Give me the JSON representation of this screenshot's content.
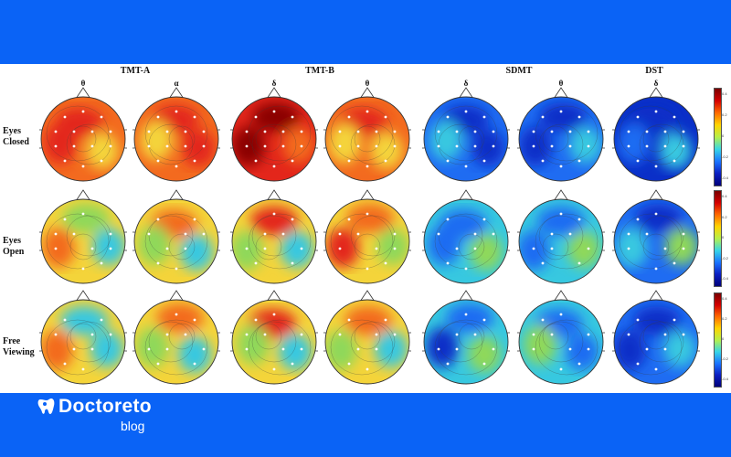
{
  "figure": {
    "tests": [
      {
        "label": "TMT-A"
      },
      {
        "label": "TMT-B"
      },
      {
        "label": "SDMT"
      },
      {
        "label": "DST"
      }
    ],
    "band_labels": [
      "θ",
      "α",
      "δ",
      "θ",
      "δ",
      "θ",
      "δ"
    ],
    "row_labels": [
      {
        "line1": "Eyes",
        "line2": "Closed"
      },
      {
        "line1": "Eyes",
        "line2": "Open"
      },
      {
        "line1": "Free",
        "line2": "Viewing"
      }
    ],
    "colorbar_ticks": [
      "0.4",
      "0.2",
      "0",
      "-0.2",
      "-0.4"
    ],
    "colors": {
      "dark_red": "#8b0000",
      "red": "#e3261b",
      "orange": "#f36a1f",
      "yellow": "#f4d43a",
      "green": "#8fd85a",
      "cyan": "#37c8e0",
      "blue": "#1f6cf2",
      "deep_blue": "#0a2fc8"
    }
  },
  "brand": {
    "name": "Doctoreto",
    "sub": "blog"
  }
}
